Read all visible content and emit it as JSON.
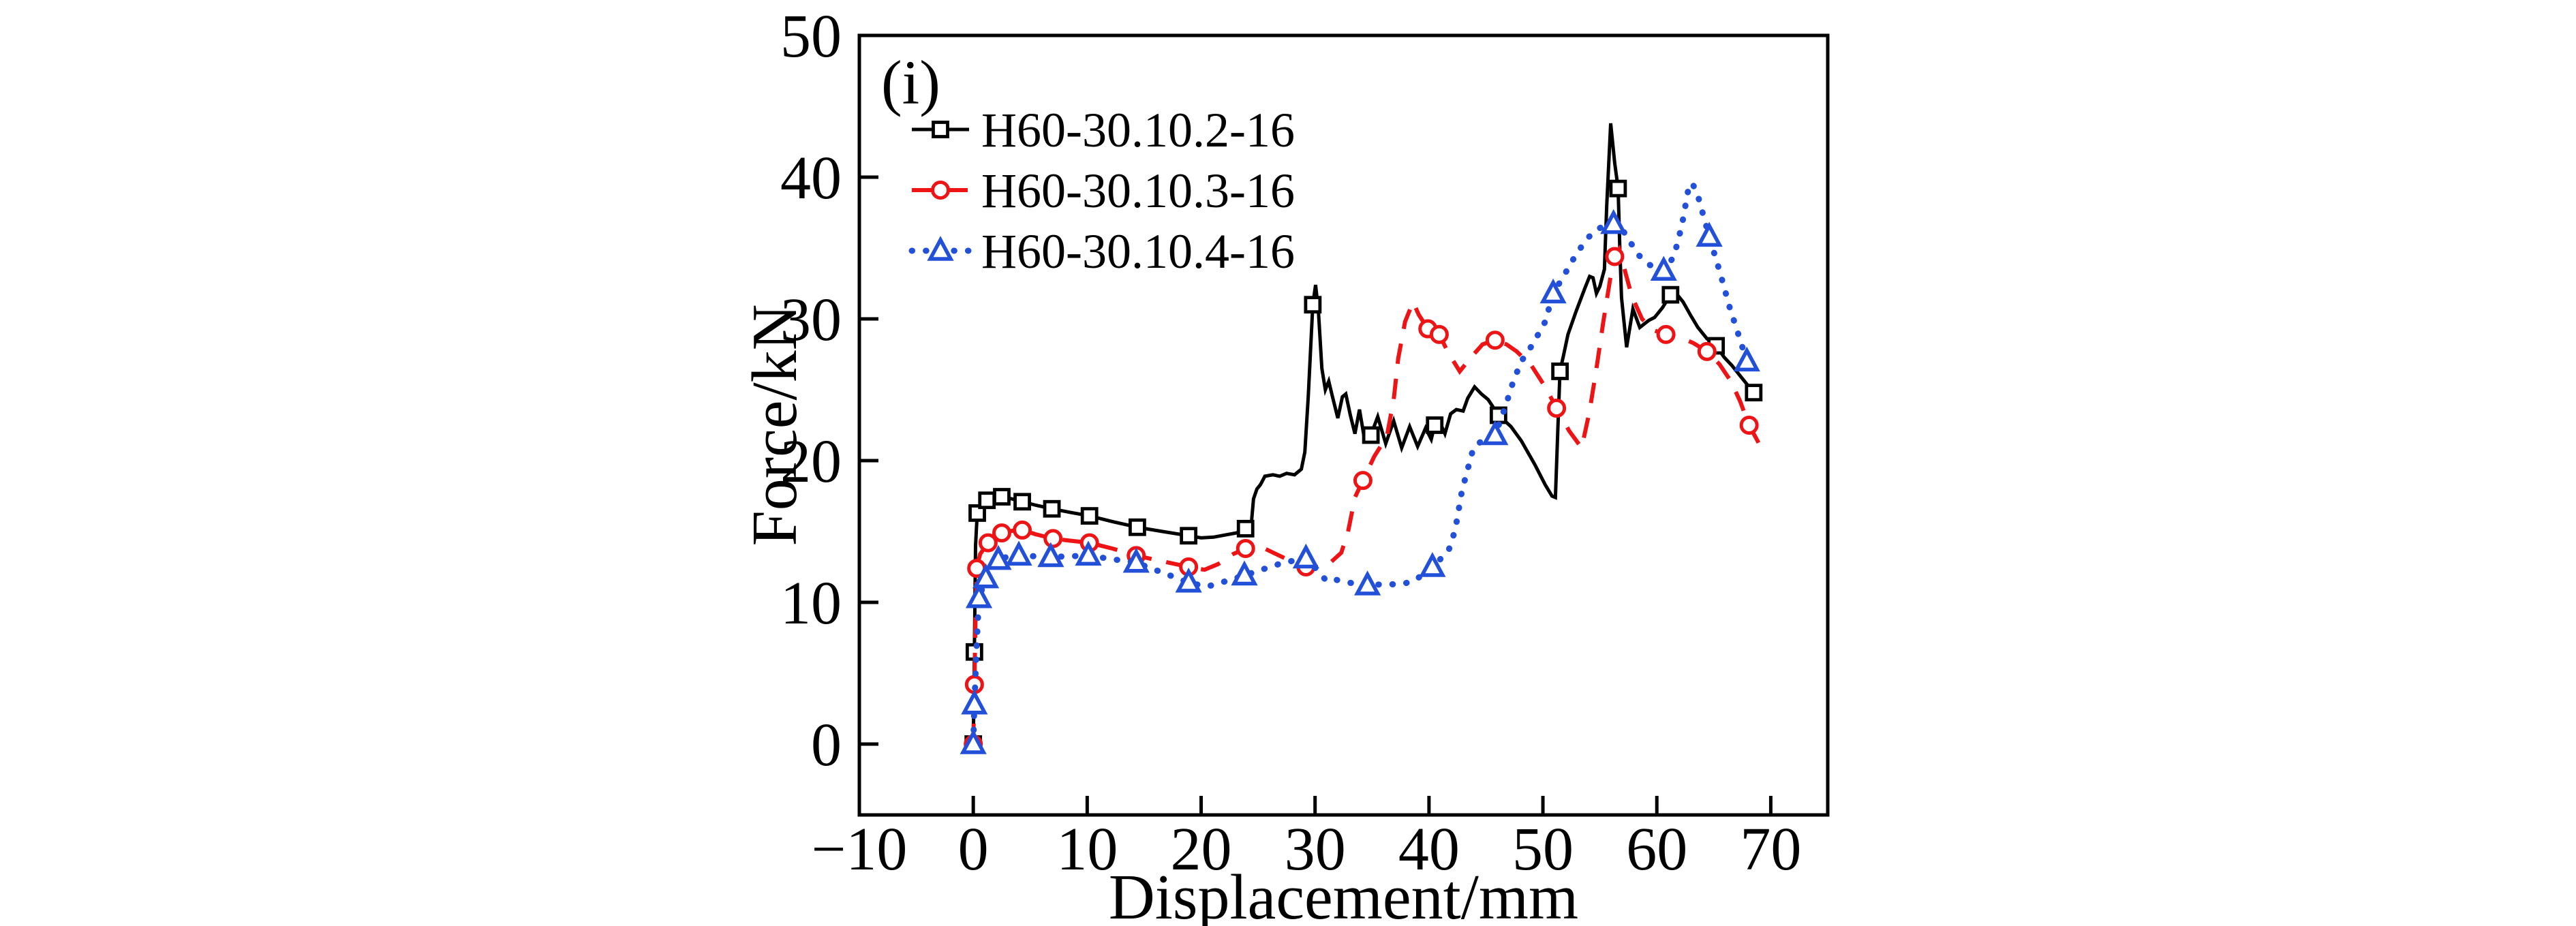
{
  "figure": {
    "background": "#ffffff",
    "panel_label": "(i)"
  },
  "chart_data": {
    "type": "line",
    "title": "",
    "panel_label": "(i)",
    "xlabel": "Displacement/mm",
    "ylabel": "Force/kN",
    "xlim": [
      -10,
      75
    ],
    "ylim": [
      -5,
      50
    ],
    "xticks": [
      -10,
      0,
      10,
      20,
      30,
      40,
      50,
      60,
      70
    ],
    "xtick_labels": [
      "−10",
      "0",
      "10",
      "20",
      "30",
      "40",
      "50",
      "60",
      "70"
    ],
    "yticks": [
      0,
      10,
      20,
      30,
      40,
      50
    ],
    "ytick_labels": [
      "0",
      "10",
      "20",
      "30",
      "40",
      "50"
    ],
    "grid": false,
    "legend_position": "upper-left-inside",
    "frame_color": "#000000",
    "series": [
      {
        "name": "H60-30.10.2-16",
        "color": "#000000",
        "line_style": "solid",
        "marker": "square",
        "line": [
          [
            0,
            0
          ],
          [
            0.1,
            6.5
          ],
          [
            0.2,
            14
          ],
          [
            0.35,
            16.3
          ],
          [
            0.7,
            16.9
          ],
          [
            1.2,
            17.2
          ],
          [
            2,
            17.4
          ],
          [
            2.5,
            17.45
          ],
          [
            3.4,
            17.3
          ],
          [
            4.3,
            17.1
          ],
          [
            5.5,
            16.85
          ],
          [
            6.9,
            16.6
          ],
          [
            8.5,
            16.35
          ],
          [
            10.2,
            16.1
          ],
          [
            12.2,
            15.7
          ],
          [
            14.4,
            15.3
          ],
          [
            16.6,
            15
          ],
          [
            18.9,
            14.7
          ],
          [
            20,
            14.55
          ],
          [
            21.1,
            14.6
          ],
          [
            22.1,
            14.75
          ],
          [
            23.1,
            14.9
          ],
          [
            23.9,
            15.2
          ],
          [
            24.4,
            15.5
          ],
          [
            24.6,
            17.3
          ],
          [
            24.9,
            18
          ],
          [
            25.2,
            18.3
          ],
          [
            25.6,
            18.9
          ],
          [
            26.3,
            19
          ],
          [
            26.9,
            18.9
          ],
          [
            27.5,
            19.1
          ],
          [
            28.2,
            19
          ],
          [
            28.8,
            19.4
          ],
          [
            29.1,
            20.6
          ],
          [
            29.4,
            24.5
          ],
          [
            29.8,
            31
          ],
          [
            30.05,
            32.4
          ],
          [
            30.3,
            30.5
          ],
          [
            30.6,
            26.5
          ],
          [
            30.9,
            25
          ],
          [
            31.2,
            25.6
          ],
          [
            31.5,
            24.6
          ],
          [
            32,
            23
          ],
          [
            32.4,
            24.5
          ],
          [
            32.7,
            24.7
          ],
          [
            33.1,
            23.2
          ],
          [
            33.5,
            21.9
          ],
          [
            33.9,
            23.6
          ],
          [
            34.3,
            21.7
          ],
          [
            34.9,
            21.8
          ],
          [
            35.5,
            23.1
          ],
          [
            36.2,
            21.2
          ],
          [
            36.9,
            22.8
          ],
          [
            37.6,
            20.9
          ],
          [
            38.3,
            22.4
          ],
          [
            39,
            21
          ],
          [
            39.7,
            22.3
          ],
          [
            40.2,
            21.5
          ],
          [
            40.5,
            22.5
          ],
          [
            40.9,
            22.8
          ],
          [
            41.4,
            21.9
          ],
          [
            41.9,
            23.3
          ],
          [
            42.4,
            23.6
          ],
          [
            43,
            23.5
          ],
          [
            43.4,
            24.4
          ],
          [
            44,
            25.2
          ],
          [
            44.6,
            24.7
          ],
          [
            45.2,
            24.3
          ],
          [
            46.1,
            23.2
          ],
          [
            47.2,
            22.4
          ],
          [
            48.1,
            21.4
          ],
          [
            49.3,
            19.7
          ],
          [
            50.2,
            18.3
          ],
          [
            50.8,
            17.5
          ],
          [
            51.1,
            17.4
          ],
          [
            51.3,
            22
          ],
          [
            51.5,
            26.3
          ],
          [
            51.8,
            27.4
          ],
          [
            52.2,
            28.9
          ],
          [
            52.9,
            30.5
          ],
          [
            53.7,
            32.2
          ],
          [
            54.1,
            33
          ],
          [
            54.4,
            32.9
          ],
          [
            54.7,
            31.8
          ],
          [
            55,
            32.3
          ],
          [
            55.4,
            33.5
          ],
          [
            55.6,
            38
          ],
          [
            55.95,
            43.8
          ],
          [
            56.3,
            41
          ],
          [
            56.6,
            39.2
          ],
          [
            56.75,
            35
          ],
          [
            56.9,
            31.5
          ],
          [
            57.35,
            28
          ],
          [
            57.9,
            30.7
          ],
          [
            58.5,
            29.4
          ],
          [
            59.3,
            29.9
          ],
          [
            59.8,
            30.1
          ],
          [
            60.5,
            30.8
          ],
          [
            61.2,
            31.7
          ],
          [
            61.6,
            31.9
          ],
          [
            62.3,
            31.2
          ],
          [
            63,
            30.2
          ],
          [
            63.6,
            29.4
          ],
          [
            64.4,
            28.6
          ],
          [
            65.2,
            28.1
          ],
          [
            65.9,
            27.3
          ],
          [
            66.6,
            26.7
          ],
          [
            67.4,
            25.9
          ],
          [
            68.5,
            24.8
          ]
        ],
        "markers": [
          [
            0,
            0
          ],
          [
            0.1,
            6.5
          ],
          [
            0.35,
            16.3
          ],
          [
            1.2,
            17.2
          ],
          [
            2.5,
            17.45
          ],
          [
            4.3,
            17.1
          ],
          [
            6.9,
            16.6
          ],
          [
            10.2,
            16.1
          ],
          [
            14.4,
            15.3
          ],
          [
            18.9,
            14.7
          ],
          [
            23.9,
            15.2
          ],
          [
            29.8,
            31
          ],
          [
            34.9,
            21.8
          ],
          [
            40.5,
            22.5
          ],
          [
            46.1,
            23.2
          ],
          [
            51.5,
            26.3
          ],
          [
            56.6,
            39.2
          ],
          [
            61.2,
            31.7
          ],
          [
            65.2,
            28.1
          ],
          [
            68.5,
            24.8
          ]
        ]
      },
      {
        "name": "H60-30.10.3-16",
        "color": "#ee1416",
        "line_style": "dashed",
        "marker": "circle",
        "line": [
          [
            0,
            0
          ],
          [
            0.1,
            4.2
          ],
          [
            0.2,
            9
          ],
          [
            0.3,
            12.4
          ],
          [
            0.6,
            13.4
          ],
          [
            1.3,
            14.2
          ],
          [
            2,
            14.7
          ],
          [
            2.5,
            14.9
          ],
          [
            3.4,
            15.05
          ],
          [
            4.3,
            15.1
          ],
          [
            5.5,
            14.8
          ],
          [
            7,
            14.5
          ],
          [
            8.5,
            14.35
          ],
          [
            10.2,
            14.2
          ],
          [
            12.2,
            13.8
          ],
          [
            14.3,
            13.3
          ],
          [
            16.6,
            12.9
          ],
          [
            18.9,
            12.5
          ],
          [
            20.3,
            12.3
          ],
          [
            21.5,
            12.7
          ],
          [
            22.8,
            13.4
          ],
          [
            23.9,
            13.8
          ],
          [
            25.3,
            13.9
          ],
          [
            26.6,
            13.4
          ],
          [
            27.9,
            12.9
          ],
          [
            29.2,
            12.5
          ],
          [
            30.3,
            12.5
          ],
          [
            31.2,
            12.7
          ],
          [
            32.3,
            13.5
          ],
          [
            32.9,
            15
          ],
          [
            33.5,
            17.4
          ],
          [
            34.2,
            18.6
          ],
          [
            35.2,
            20.3
          ],
          [
            36.3,
            21.7
          ],
          [
            36.9,
            24.3
          ],
          [
            37.3,
            27.2
          ],
          [
            37.9,
            29.8
          ],
          [
            38.6,
            31.2
          ],
          [
            39.1,
            30.3
          ],
          [
            39.9,
            29.3
          ],
          [
            40.4,
            29.5
          ],
          [
            40.9,
            28.9
          ],
          [
            41.7,
            27.6
          ],
          [
            42.7,
            26.3
          ],
          [
            43.7,
            27.3
          ],
          [
            44.7,
            28.2
          ],
          [
            45.8,
            28.5
          ],
          [
            46.8,
            28.2
          ],
          [
            47.7,
            27.7
          ],
          [
            49,
            26.7
          ],
          [
            50.2,
            25.2
          ],
          [
            51.2,
            23.7
          ],
          [
            52.3,
            22.1
          ],
          [
            53.4,
            20.9
          ],
          [
            54.1,
            23.5
          ],
          [
            54.7,
            26.5
          ],
          [
            55.3,
            29.8
          ],
          [
            55.9,
            32.8
          ],
          [
            56.3,
            34.4
          ],
          [
            56.7,
            34.9
          ],
          [
            57.2,
            33.4
          ],
          [
            57.8,
            31.6
          ],
          [
            58.7,
            30
          ],
          [
            59.7,
            29.2
          ],
          [
            60.8,
            28.9
          ],
          [
            62,
            28.7
          ],
          [
            63.2,
            28.3
          ],
          [
            64.4,
            27.7
          ],
          [
            65.5,
            26.8
          ],
          [
            66.5,
            25.6
          ],
          [
            67.3,
            24.2
          ],
          [
            68.1,
            22.5
          ],
          [
            69.3,
            20.7
          ]
        ],
        "markers": [
          [
            0,
            0
          ],
          [
            0.1,
            4.2
          ],
          [
            0.3,
            12.4
          ],
          [
            1.3,
            14.2
          ],
          [
            2.5,
            14.9
          ],
          [
            4.3,
            15.1
          ],
          [
            7,
            14.5
          ],
          [
            10.2,
            14.2
          ],
          [
            14.3,
            13.3
          ],
          [
            18.9,
            12.5
          ],
          [
            23.9,
            13.8
          ],
          [
            29.2,
            12.5
          ],
          [
            34.2,
            18.6
          ],
          [
            39.9,
            29.3
          ],
          [
            40.9,
            28.9
          ],
          [
            45.8,
            28.5
          ],
          [
            51.2,
            23.7
          ],
          [
            56.3,
            34.4
          ],
          [
            60.8,
            28.9
          ],
          [
            64.4,
            27.7
          ],
          [
            68.1,
            22.5
          ]
        ]
      },
      {
        "name": "H60-30.10.4-16",
        "color": "#2350d8",
        "line_style": "dotted",
        "marker": "triangle",
        "line": [
          [
            0,
            0
          ],
          [
            0.1,
            2.8
          ],
          [
            0.3,
            7
          ],
          [
            0.5,
            10.3
          ],
          [
            1.1,
            11.7
          ],
          [
            2.2,
            13
          ],
          [
            3.1,
            13.25
          ],
          [
            4,
            13.3
          ],
          [
            5.4,
            13.25
          ],
          [
            6.8,
            13.2
          ],
          [
            8.4,
            13.25
          ],
          [
            10.1,
            13.3
          ],
          [
            12.2,
            13.05
          ],
          [
            14.3,
            12.8
          ],
          [
            16.6,
            12.1
          ],
          [
            18.9,
            11.4
          ],
          [
            20.5,
            11.1
          ],
          [
            22.2,
            11.5
          ],
          [
            23.8,
            11.9
          ],
          [
            25.3,
            12.3
          ],
          [
            27.2,
            12.8
          ],
          [
            29.2,
            13.1
          ],
          [
            30.3,
            12.2
          ],
          [
            31,
            11.5
          ],
          [
            31.8,
            11.6
          ],
          [
            32.9,
            11.4
          ],
          [
            33.8,
            11.3
          ],
          [
            34.6,
            11.2
          ],
          [
            36.3,
            11.3
          ],
          [
            37.4,
            11.25
          ],
          [
            38.7,
            11.5
          ],
          [
            40.3,
            12.5
          ],
          [
            41.7,
            13.6
          ],
          [
            42.3,
            15.1
          ],
          [
            42.9,
            17.9
          ],
          [
            43.9,
            20.9
          ],
          [
            44.8,
            21.5
          ],
          [
            45.8,
            21.8
          ],
          [
            46.7,
            23.8
          ],
          [
            47.4,
            25.6
          ],
          [
            48.1,
            27
          ],
          [
            49.1,
            28.2
          ],
          [
            50.2,
            29.8
          ],
          [
            50.9,
            31.8
          ],
          [
            51.8,
            33
          ],
          [
            52.8,
            34.4
          ],
          [
            53.8,
            35.6
          ],
          [
            54.7,
            36.3
          ],
          [
            55.5,
            36.6
          ],
          [
            56.2,
            36.7
          ],
          [
            56.9,
            36.4
          ],
          [
            57.6,
            35.5
          ],
          [
            58.4,
            34.5
          ],
          [
            59.4,
            33.8
          ],
          [
            60.6,
            33.4
          ],
          [
            61.5,
            34.4
          ],
          [
            62.2,
            36.6
          ],
          [
            62.8,
            39.3
          ],
          [
            63.1,
            39.6
          ],
          [
            63.6,
            38.7
          ],
          [
            64.6,
            35.8
          ],
          [
            65.5,
            33.4
          ],
          [
            66.4,
            30.8
          ],
          [
            67.2,
            28.8
          ],
          [
            67.9,
            27
          ]
        ],
        "markers": [
          [
            0,
            0
          ],
          [
            0.1,
            2.8
          ],
          [
            0.5,
            10.3
          ],
          [
            1.1,
            11.7
          ],
          [
            2.2,
            13
          ],
          [
            4,
            13.3
          ],
          [
            6.8,
            13.2
          ],
          [
            10.1,
            13.3
          ],
          [
            14.3,
            12.8
          ],
          [
            18.9,
            11.4
          ],
          [
            23.8,
            11.9
          ],
          [
            29.2,
            13.1
          ],
          [
            34.6,
            11.2
          ],
          [
            40.3,
            12.5
          ],
          [
            45.8,
            21.8
          ],
          [
            50.9,
            31.8
          ],
          [
            56.2,
            36.7
          ],
          [
            60.6,
            33.4
          ],
          [
            64.6,
            35.8
          ],
          [
            67.9,
            27
          ]
        ]
      }
    ]
  }
}
